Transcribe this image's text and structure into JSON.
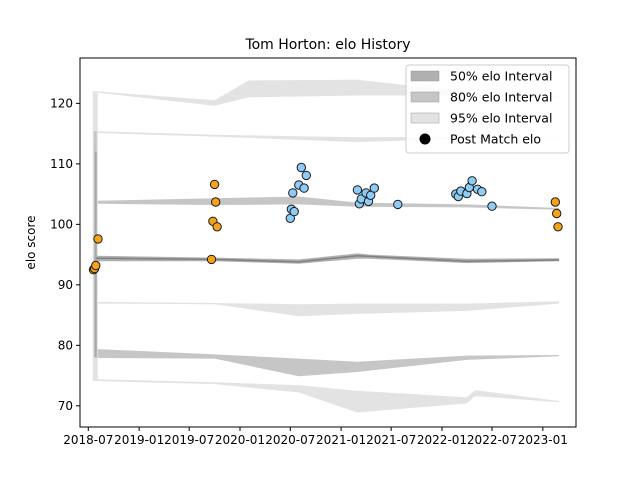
{
  "chart_data": {
    "type": "scatter",
    "title": "Tom Horton: elo History",
    "xlabel": "",
    "ylabel": "elo score",
    "xlim": [
      "2018-06-01",
      "2023-05-01"
    ],
    "ylim": [
      66.5,
      127.5
    ],
    "x_ticks": [
      "2018-07",
      "2019-01",
      "2019-07",
      "2020-01",
      "2020-07",
      "2021-01",
      "2021-07",
      "2022-01",
      "2022-07",
      "2023-01"
    ],
    "y_ticks": [
      70,
      80,
      90,
      100,
      110,
      120
    ],
    "legend_position": "top-right",
    "colors": {
      "band_50": "#b0b0b0",
      "band_80": "#c6c6c6",
      "band_95": "#e3e3e3",
      "median_line": "#808080",
      "point_orange": "#f5a31a",
      "point_blue": "#8ecbf5",
      "point_edge": "#1a1a1a"
    },
    "legend": [
      {
        "label": "50% elo Interval",
        "kind": "band_50"
      },
      {
        "label": "80% elo Interval",
        "kind": "band_80"
      },
      {
        "label": "95% elo Interval",
        "kind": "band_95"
      },
      {
        "label": "Post Match elo",
        "kind": "marker"
      }
    ],
    "series": [
      {
        "name": "Post Match elo",
        "points": [
          {
            "x": "2018-07-20",
            "y": 92.5,
            "color": "orange"
          },
          {
            "x": "2018-07-24",
            "y": 92.7,
            "color": "orange"
          },
          {
            "x": "2018-07-28",
            "y": 93.2,
            "color": "orange"
          },
          {
            "x": "2018-08-05",
            "y": 97.6,
            "color": "orange"
          },
          {
            "x": "2019-09-20",
            "y": 94.2,
            "color": "orange"
          },
          {
            "x": "2019-09-25",
            "y": 100.5,
            "color": "orange"
          },
          {
            "x": "2019-10-01",
            "y": 106.6,
            "color": "orange"
          },
          {
            "x": "2019-10-05",
            "y": 103.7,
            "color": "orange"
          },
          {
            "x": "2019-10-10",
            "y": 99.6,
            "color": "orange"
          },
          {
            "x": "2020-07-01",
            "y": 101.0,
            "color": "blue"
          },
          {
            "x": "2020-07-05",
            "y": 102.5,
            "color": "blue"
          },
          {
            "x": "2020-07-10",
            "y": 105.2,
            "color": "blue"
          },
          {
            "x": "2020-07-15",
            "y": 102.1,
            "color": "blue"
          },
          {
            "x": "2020-08-01",
            "y": 106.5,
            "color": "blue"
          },
          {
            "x": "2020-08-10",
            "y": 109.4,
            "color": "blue"
          },
          {
            "x": "2020-08-20",
            "y": 106.0,
            "color": "blue"
          },
          {
            "x": "2020-08-28",
            "y": 108.1,
            "color": "blue"
          },
          {
            "x": "2021-03-01",
            "y": 105.7,
            "color": "blue"
          },
          {
            "x": "2021-03-08",
            "y": 103.4,
            "color": "blue"
          },
          {
            "x": "2021-03-15",
            "y": 104.2,
            "color": "blue"
          },
          {
            "x": "2021-04-01",
            "y": 105.2,
            "color": "blue"
          },
          {
            "x": "2021-04-10",
            "y": 103.8,
            "color": "blue"
          },
          {
            "x": "2021-04-18",
            "y": 104.8,
            "color": "blue"
          },
          {
            "x": "2021-05-01",
            "y": 106.0,
            "color": "blue"
          },
          {
            "x": "2021-07-25",
            "y": 103.3,
            "color": "blue"
          },
          {
            "x": "2022-02-20",
            "y": 105.0,
            "color": "blue"
          },
          {
            "x": "2022-03-01",
            "y": 104.6,
            "color": "blue"
          },
          {
            "x": "2022-03-10",
            "y": 105.5,
            "color": "blue"
          },
          {
            "x": "2022-04-01",
            "y": 105.1,
            "color": "blue"
          },
          {
            "x": "2022-04-10",
            "y": 106.1,
            "color": "blue"
          },
          {
            "x": "2022-04-20",
            "y": 107.2,
            "color": "blue"
          },
          {
            "x": "2022-05-10",
            "y": 105.8,
            "color": "blue"
          },
          {
            "x": "2022-05-25",
            "y": 105.4,
            "color": "blue"
          },
          {
            "x": "2022-07-01",
            "y": 103.0,
            "color": "blue"
          },
          {
            "x": "2023-02-15",
            "y": 103.7,
            "color": "orange"
          },
          {
            "x": "2023-02-20",
            "y": 101.8,
            "color": "orange"
          },
          {
            "x": "2023-02-25",
            "y": 99.6,
            "color": "orange"
          }
        ]
      }
    ],
    "intervals": {
      "median": [
        {
          "x": "2018-07-28",
          "y": 94.4
        },
        {
          "x": "2019-10-01",
          "y": 94.2
        },
        {
          "x": "2020-08-01",
          "y": 93.8
        },
        {
          "x": "2021-03-01",
          "y": 94.8
        },
        {
          "x": "2021-04-15",
          "y": 94.7
        },
        {
          "x": "2022-04-01",
          "y": 93.9
        },
        {
          "x": "2023-03-01",
          "y": 94.1
        }
      ],
      "band_50": [
        {
          "x": "2018-07-28",
          "lo": 93.9,
          "hi": 94.8
        },
        {
          "x": "2019-10-01",
          "lo": 93.9,
          "hi": 94.5
        },
        {
          "x": "2020-08-01",
          "lo": 93.5,
          "hi": 94.2
        },
        {
          "x": "2021-03-01",
          "lo": 94.3,
          "hi": 95.2
        },
        {
          "x": "2021-04-15",
          "lo": 94.3,
          "hi": 95.0
        },
        {
          "x": "2022-04-01",
          "lo": 93.6,
          "hi": 94.3
        },
        {
          "x": "2023-03-01",
          "lo": 93.9,
          "hi": 94.4
        }
      ],
      "band_80_hi": [
        {
          "x": "2018-07-28",
          "lo": 103.4,
          "hi": 103.9
        },
        {
          "x": "2019-10-01",
          "lo": 103.2,
          "hi": 104.3
        },
        {
          "x": "2020-08-01",
          "lo": 103.3,
          "hi": 104.6
        },
        {
          "x": "2021-03-01",
          "lo": 102.9,
          "hi": 103.6
        },
        {
          "x": "2022-04-01",
          "lo": 102.8,
          "hi": 103.3
        },
        {
          "x": "2023-03-01",
          "lo": 102.4,
          "hi": 102.7
        }
      ],
      "band_80_lo": [
        {
          "x": "2018-07-28",
          "lo": 77.9,
          "hi": 79.4
        },
        {
          "x": "2019-10-01",
          "lo": 77.8,
          "hi": 78.5
        },
        {
          "x": "2020-08-01",
          "lo": 74.9,
          "hi": 77.8
        },
        {
          "x": "2021-03-01",
          "lo": 75.6,
          "hi": 77.3
        },
        {
          "x": "2022-04-01",
          "lo": 77.6,
          "hi": 78.3
        },
        {
          "x": "2023-03-01",
          "lo": 78.2,
          "hi": 78.4
        }
      ],
      "band_95_top": [
        {
          "x": "2018-07-28",
          "lo": 121.8,
          "hi": 122.0
        },
        {
          "x": "2019-10-01",
          "lo": 119.6,
          "hi": 120.5
        },
        {
          "x": "2020-02-01",
          "lo": 121.0,
          "hi": 123.8
        },
        {
          "x": "2021-03-01",
          "lo": 121.3,
          "hi": 123.9
        },
        {
          "x": "2022-04-01",
          "lo": 121.3,
          "hi": 121.9
        },
        {
          "x": "2023-03-01",
          "lo": 121.0,
          "hi": 121.2
        }
      ],
      "band_95_mid_hi": [
        {
          "x": "2018-07-28",
          "lo": 115.1,
          "hi": 115.4
        },
        {
          "x": "2019-10-01",
          "lo": 114.5,
          "hi": 114.8
        },
        {
          "x": "2021-03-01",
          "lo": 113.6,
          "hi": 114.4
        },
        {
          "x": "2022-04-01",
          "lo": 114.2,
          "hi": 114.5
        },
        {
          "x": "2023-03-01",
          "lo": 114.3,
          "hi": 114.5
        }
      ],
      "band_95_mid_lo": [
        {
          "x": "2018-07-28",
          "lo": 86.9,
          "hi": 87.2
        },
        {
          "x": "2019-10-01",
          "lo": 86.8,
          "hi": 87.0
        },
        {
          "x": "2020-08-01",
          "lo": 84.8,
          "hi": 86.8
        },
        {
          "x": "2021-03-01",
          "lo": 85.2,
          "hi": 86.9
        },
        {
          "x": "2022-04-01",
          "lo": 85.7,
          "hi": 86.9
        },
        {
          "x": "2023-03-01",
          "lo": 86.9,
          "hi": 87.3
        }
      ],
      "band_95_bottom": [
        {
          "x": "2018-07-28",
          "lo": 74.1,
          "hi": 74.4
        },
        {
          "x": "2019-10-01",
          "lo": 73.6,
          "hi": 73.9
        },
        {
          "x": "2020-08-01",
          "lo": 72.2,
          "hi": 73.4
        },
        {
          "x": "2021-03-01",
          "lo": 68.9,
          "hi": 72.5
        },
        {
          "x": "2022-04-01",
          "lo": 70.4,
          "hi": 71.4
        },
        {
          "x": "2022-05-01",
          "lo": 71.6,
          "hi": 72.6
        },
        {
          "x": "2023-03-01",
          "lo": 70.6,
          "hi": 70.8
        }
      ]
    }
  }
}
